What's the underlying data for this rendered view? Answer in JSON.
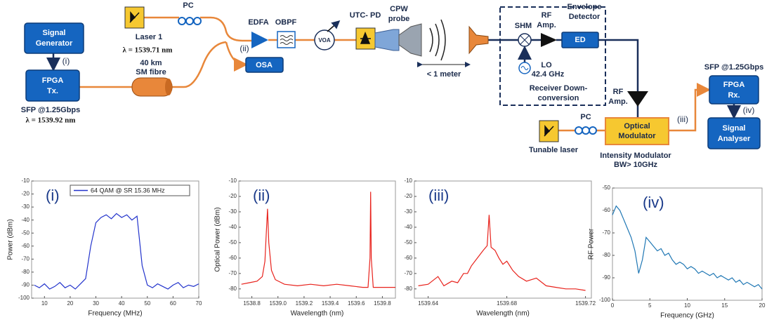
{
  "diagram": {
    "signal_generator_1": "Signal",
    "signal_generator_2": "Generator",
    "tap_i": "(i)",
    "fpga_tx_1": "FPGA",
    "fpga_tx_2": "Tx.",
    "sfp_tx": "SFP  @1.25Gbps",
    "lambda_tx": "λ = 1539.92 nm",
    "fibre_1": "40 km",
    "fibre_2": "SM fibre",
    "laser1": "Laser 1",
    "lambda_laser1": "λ = 1539.71 nm",
    "pc_1": "PC",
    "tap_ii": "(ii)",
    "edfa": "EDFA",
    "obpf": "OBPF",
    "voa": "VOA",
    "osa": "OSA",
    "utc_pd": "UTC- PD",
    "cpw_1": "CPW",
    "cpw_2": "probe",
    "distance": "< 1 meter",
    "shm": "SHM",
    "rf_amp1_1": "RF",
    "rf_amp1_2": "Amp.",
    "envelope_1": "Envelope",
    "envelope_2": "Detector",
    "ed": "ED",
    "lo": "LO",
    "lo_freq": "42.4 GHz",
    "receiver_1": "Receiver Down-",
    "receiver_2": "conversion",
    "rf_amp2_1": "RF",
    "rf_amp2_2": "Amp.",
    "modulator_1": "Optical",
    "modulator_2": "Modulator",
    "tunable_laser": "Tunable laser",
    "pc_2": "PC",
    "tap_iii": "(iii)",
    "im_1": "Intensity Modulator",
    "im_2": "BW> 10GHz",
    "sfp_rx": "SFP  @1.25Gbps",
    "fpga_rx_1": "FPGA",
    "fpga_rx_2": "Rx.",
    "tap_iv": "(iv)",
    "analyser_1": "Signal",
    "analyser_2": "Analyser"
  },
  "chart_data": [
    {
      "type": "line",
      "label": "(i)",
      "x_label": "Frequency (MHz)",
      "y_label": "Power (dBm)",
      "xlim": [
        5,
        70
      ],
      "ylim": [
        -100,
        -10
      ],
      "xticks": [
        10,
        20,
        30,
        40,
        50,
        60,
        70
      ],
      "yticks": [
        -10,
        -20,
        -30,
        -40,
        -50,
        -60,
        -70,
        -80,
        -90,
        -100
      ],
      "x": [
        6,
        8,
        10,
        12,
        14,
        16,
        18,
        20,
        22,
        24,
        26,
        28,
        30,
        32,
        34,
        36,
        38,
        40,
        42,
        44,
        46,
        48,
        50,
        52,
        54,
        56,
        58,
        60,
        62,
        64,
        66,
        68,
        70
      ],
      "series": [
        {
          "name": "64 QAM @ SR 15.36 MHz",
          "color": "#2233cc",
          "values": [
            -90,
            -92,
            -89,
            -93,
            -91,
            -88,
            -92,
            -90,
            -93,
            -89,
            -85,
            -60,
            -42,
            -38,
            -36,
            -39,
            -35,
            -38,
            -36,
            -40,
            -37,
            -75,
            -90,
            -92,
            -89,
            -91,
            -93,
            -90,
            -88,
            -92,
            -90,
            -91,
            -89
          ]
        }
      ]
    },
    {
      "type": "line",
      "label": "(ii)",
      "x_label": "Wavelength (nm)",
      "y_label": "Optical Power (dBm)",
      "xlim": [
        1538.7,
        1539.9
      ],
      "ylim": [
        -86,
        -10
      ],
      "xticks": [
        1538.8,
        {
          "value": 1539,
          "label": "1539.0"
        },
        1539.2,
        1539.4,
        1539.6,
        1539.8
      ],
      "yticks": [
        -10,
        -20,
        -30,
        -40,
        -50,
        -60,
        -70,
        -80
      ],
      "x": [
        1538.72,
        1538.78,
        1538.84,
        1538.88,
        1538.9,
        1538.91,
        1538.92,
        1538.93,
        1538.95,
        1538.98,
        1539.05,
        1539.15,
        1539.25,
        1539.35,
        1539.45,
        1539.55,
        1539.65,
        1539.69,
        1539.705,
        1539.71,
        1539.715,
        1539.73,
        1539.8,
        1539.9
      ],
      "series": [
        {
          "color": "#e8221c",
          "values": [
            -77,
            -76,
            -75,
            -72,
            -62,
            -45,
            -28,
            -50,
            -68,
            -74,
            -77,
            -78,
            -77,
            -78,
            -77,
            -78,
            -79,
            -79,
            -60,
            -17,
            -60,
            -79,
            -79,
            -79
          ]
        }
      ]
    },
    {
      "type": "line",
      "label": "(iii)",
      "x_label": "Wavelength (nm)",
      "xlim": [
        1539.633,
        1539.723
      ],
      "ylim": [
        -86,
        -10
      ],
      "xticks": [
        1539.64,
        1539.68,
        1539.72
      ],
      "yticks": [
        -10,
        -20,
        -30,
        -40,
        -50,
        -60,
        -70,
        -80
      ],
      "x": [
        1539.635,
        1539.64,
        1539.645,
        1539.648,
        1539.652,
        1539.655,
        1539.658,
        1539.66,
        1539.662,
        1539.665,
        1539.668,
        1539.67,
        1539.671,
        1539.672,
        1539.674,
        1539.676,
        1539.678,
        1539.68,
        1539.683,
        1539.686,
        1539.69,
        1539.695,
        1539.7,
        1539.705,
        1539.71,
        1539.715,
        1539.72
      ],
      "series": [
        {
          "color": "#e8221c",
          "values": [
            -78,
            -77,
            -72,
            -78,
            -75,
            -76,
            -70,
            -70,
            -65,
            -60,
            -55,
            -52,
            -32,
            -53,
            -55,
            -60,
            -64,
            -62,
            -68,
            -72,
            -75,
            -73,
            -78,
            -79,
            -80,
            -80,
            -81
          ]
        }
      ]
    },
    {
      "type": "line",
      "label": "(iv)",
      "x_label": "Frequency (GHz)",
      "y_label": "RF Power",
      "xlim": [
        0,
        20
      ],
      "ylim": [
        -100,
        -50
      ],
      "xticks": [
        0,
        5,
        10,
        15,
        20
      ],
      "yticks": [
        -50,
        -60,
        -70,
        -80,
        -90,
        -100
      ],
      "x": [
        0,
        0.5,
        1,
        1.5,
        2,
        2.5,
        3,
        3.5,
        4,
        4.5,
        5,
        5.5,
        6,
        6.5,
        7,
        7.5,
        8,
        8.5,
        9,
        9.5,
        10,
        10.5,
        11,
        11.5,
        12,
        12.5,
        13,
        13.5,
        14,
        14.5,
        15,
        15.5,
        16,
        16.5,
        17,
        17.5,
        18,
        18.5,
        19,
        19.5,
        20
      ],
      "series": [
        {
          "color": "#1f77b4",
          "values": [
            -62,
            -58,
            -60,
            -64,
            -68,
            -72,
            -78,
            -88,
            -82,
            -72,
            -74,
            -76,
            -78,
            -77,
            -80,
            -79,
            -82,
            -84,
            -83,
            -84,
            -86,
            -85,
            -86,
            -88,
            -87,
            -88,
            -89,
            -88,
            -90,
            -89,
            -90,
            -91,
            -90,
            -92,
            -91,
            -93,
            -92,
            -93,
            -94,
            -93,
            -95
          ]
        }
      ]
    }
  ]
}
